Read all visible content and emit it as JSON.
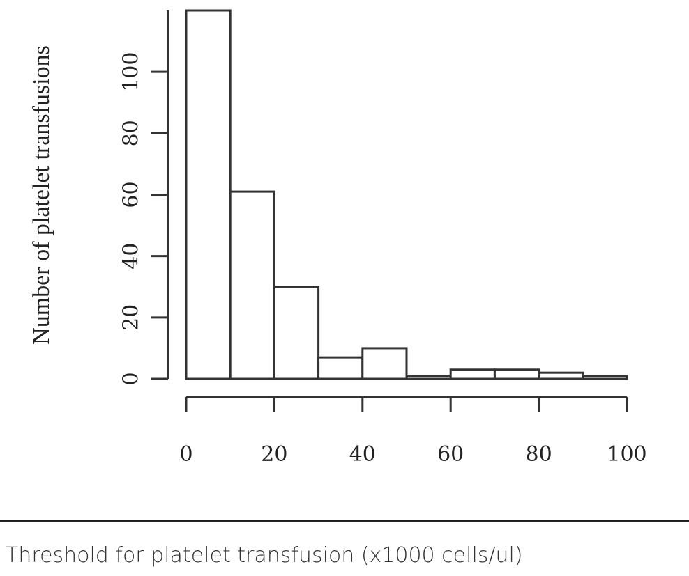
{
  "chart_data": {
    "type": "bar",
    "title": "",
    "ylabel": "Number of platelet transfusions",
    "xlabel": "Threshold for platelet transfusion (x1000 cells/ul)",
    "bin_edges": [
      0,
      10,
      20,
      30,
      40,
      50,
      60,
      70,
      80,
      90,
      100
    ],
    "values": [
      120,
      61,
      30,
      7,
      10,
      1,
      3,
      3,
      2,
      1
    ],
    "xlim": [
      0,
      100
    ],
    "ylim": [
      0,
      120
    ],
    "x_ticks": [
      0,
      20,
      40,
      60,
      80,
      100
    ],
    "y_ticks": [
      0,
      20,
      40,
      60,
      80,
      100
    ],
    "x_tick_labels": [
      "0",
      "20",
      "40",
      "60",
      "80",
      "100"
    ],
    "y_tick_labels": [
      "0",
      "20",
      "40",
      "60",
      "80",
      "100"
    ],
    "grid": false,
    "legend": "none",
    "bar_fill": "#ffffff",
    "bar_stroke": "#333333"
  }
}
